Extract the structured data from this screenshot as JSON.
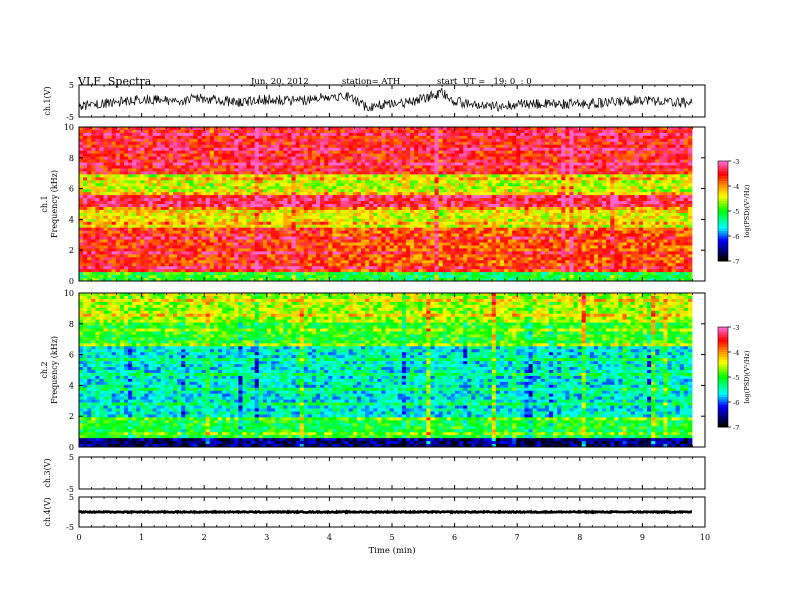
{
  "header": {
    "title": "VLF  Spectra",
    "date": "Jun. 20, 2012",
    "station": "station= ATH",
    "start": "start  UT =   19: 0  : 0"
  },
  "chart_data": [
    {
      "type": "line",
      "panel": "ch1-waveform",
      "ylabel": "ch.1(V)",
      "ylim": [
        -5,
        5
      ],
      "y_ticks": [
        "5",
        "-5"
      ],
      "xlim": [
        0,
        10
      ],
      "trace_color": "#000000",
      "x": [
        0,
        0.5,
        1,
        1.5,
        2,
        2.5,
        3,
        3.5,
        4,
        4.3,
        4.6,
        5,
        5.3,
        5.8,
        6,
        6.5,
        7,
        7.5,
        8,
        8.5,
        9,
        9.5,
        9.8
      ],
      "y": [
        -1.5,
        -0.5,
        0.5,
        0,
        1,
        -0.5,
        0.5,
        0,
        1.5,
        1.5,
        -2,
        -0.5,
        -0.5,
        2.5,
        0,
        -2,
        -1,
        -1,
        -1,
        -0.5,
        0.5,
        -0.5,
        -0.5
      ]
    },
    {
      "type": "heatmap",
      "panel": "ch1-spectrogram",
      "ylabel": "ch.1\nFrequency  (kHz)",
      "ylim": [
        0,
        10
      ],
      "y_ticks": [
        "0",
        "2",
        "4",
        "6",
        "8",
        "10"
      ],
      "xlim": [
        0,
        10
      ],
      "colorbar": {
        "label": "log(PSD)(V²/Hz)",
        "range": [
          -7,
          -3
        ],
        "ticks": [
          "-3",
          "-4",
          "-5",
          "-6",
          "-7"
        ]
      },
      "dominant_level": -4
    },
    {
      "type": "heatmap",
      "panel": "ch2-spectrogram",
      "ylabel": "ch.2\nFrequency  (kHz)",
      "ylim": [
        0,
        10
      ],
      "y_ticks": [
        "0",
        "2",
        "4",
        "6",
        "8",
        "10"
      ],
      "xlim": [
        0,
        10
      ],
      "colorbar": {
        "label": "log(PSD)(V²/Hz)",
        "range": [
          -7,
          -3
        ],
        "ticks": [
          "-3",
          "-4",
          "-5",
          "-6",
          "-7"
        ]
      },
      "dominant_level": -5.2
    },
    {
      "type": "line",
      "panel": "ch3-waveform",
      "ylabel": "ch.3(V)",
      "ylim": [
        -5,
        5
      ],
      "y_ticks": [
        "5",
        "-5"
      ],
      "xlim": [
        0,
        10
      ],
      "trace_color": "#000000",
      "x": [],
      "y": []
    },
    {
      "type": "line",
      "panel": "ch4-waveform",
      "ylabel": "ch.4(V)",
      "ylim": [
        -5,
        5
      ],
      "y_ticks": [
        "5",
        "-5"
      ],
      "xlim": [
        0,
        10
      ],
      "trace_color": "#000000",
      "x": [
        0,
        9.8
      ],
      "y": [
        0,
        0
      ]
    }
  ],
  "x_axis": {
    "label": "Time  (min)",
    "ticks": [
      "0",
      "1",
      "2",
      "3",
      "4",
      "5",
      "6",
      "7",
      "8",
      "9",
      "10"
    ]
  },
  "colors": {
    "red": "#ff0000",
    "orange": "#ff7f00",
    "yellow": "#ffff00",
    "green": "#00ff00",
    "cyan": "#00ffff",
    "blue": "#0000ff",
    "navy": "#000080",
    "black": "#000000"
  }
}
